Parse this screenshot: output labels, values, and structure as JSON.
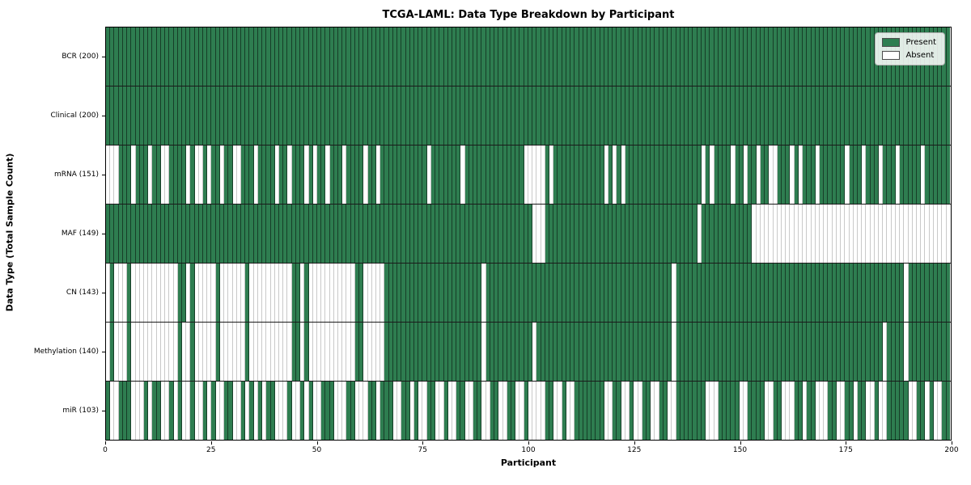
{
  "chart_data": {
    "type": "heatmap",
    "title": "TCGA-LAML: Data Type Breakdown by Participant",
    "xlabel": "Participant",
    "ylabel": "Data Type (Total Sample Count)",
    "x_range": [
      0,
      200
    ],
    "x_ticks": [
      0,
      25,
      50,
      75,
      100,
      125,
      150,
      175,
      200
    ],
    "n_participants": 200,
    "grid": "cell-borders-on",
    "legend_position": "upper right",
    "colors": {
      "present": "#2e7d50",
      "absent": "#ffffff",
      "gridline_on_present": "rgba(0,0,0,0.5)",
      "gridline_on_absent": "#c9c9c9",
      "plot_border": "#000000"
    },
    "legend": {
      "entries": [
        {
          "label": "Present",
          "color": "#2e7d50"
        },
        {
          "label": "Absent",
          "color": "#ffffff"
        }
      ]
    },
    "rows": [
      {
        "label": "BCR (200)",
        "present_total": 200,
        "absent": []
      },
      {
        "label": "Clinical (200)",
        "present_total": 200,
        "absent": []
      },
      {
        "label": "mRNA (151)",
        "present_total": 151,
        "absent": [
          1,
          2,
          3,
          7,
          11,
          14,
          15,
          20,
          22,
          23,
          25,
          28,
          31,
          32,
          36,
          41,
          44,
          48,
          50,
          53,
          57,
          62,
          65,
          77,
          85,
          100,
          101,
          102,
          103,
          104,
          106,
          119,
          121,
          123,
          142,
          144,
          149,
          152,
          155,
          158,
          159,
          163,
          165,
          169,
          176,
          180,
          184,
          188,
          194
        ]
      },
      {
        "label": "MAF (149)",
        "present_total": 149,
        "absent": [
          102,
          103,
          104,
          141,
          154,
          155,
          156,
          157,
          158,
          159,
          160,
          161,
          162,
          163,
          164,
          165,
          166,
          167,
          168,
          169,
          170,
          171,
          172,
          173,
          174,
          175,
          176,
          177,
          178,
          179,
          180,
          181,
          182,
          183,
          184,
          185,
          186,
          187,
          188,
          189,
          190,
          191,
          192,
          193,
          194,
          195,
          196,
          197,
          198,
          199,
          200
        ]
      },
      {
        "label": "CN (143)",
        "present_total": 143,
        "absent": [
          1,
          3,
          4,
          5,
          7,
          8,
          9,
          10,
          11,
          12,
          13,
          14,
          15,
          16,
          17,
          20,
          22,
          23,
          24,
          25,
          26,
          28,
          29,
          30,
          31,
          32,
          33,
          35,
          36,
          37,
          38,
          39,
          40,
          41,
          42,
          43,
          44,
          47,
          49,
          50,
          51,
          52,
          53,
          54,
          55,
          56,
          57,
          58,
          59,
          62,
          63,
          64,
          65,
          66,
          90,
          135,
          190
        ]
      },
      {
        "label": "Methylation (140)",
        "present_total": 140,
        "absent": [
          1,
          3,
          4,
          5,
          7,
          8,
          9,
          10,
          11,
          12,
          13,
          14,
          15,
          16,
          17,
          19,
          20,
          22,
          23,
          24,
          25,
          26,
          28,
          29,
          30,
          31,
          32,
          33,
          35,
          36,
          37,
          38,
          39,
          40,
          41,
          42,
          43,
          44,
          47,
          49,
          50,
          51,
          52,
          53,
          54,
          55,
          56,
          57,
          58,
          59,
          62,
          63,
          64,
          65,
          66,
          90,
          102,
          135,
          185,
          190
        ]
      },
      {
        "label": "miR (103)",
        "present_total": 103,
        "absent": [
          2,
          3,
          7,
          8,
          9,
          11,
          14,
          15,
          17,
          19,
          20,
          22,
          23,
          25,
          27,
          28,
          31,
          32,
          34,
          36,
          38,
          41,
          42,
          43,
          45,
          46,
          48,
          50,
          51,
          55,
          56,
          57,
          60,
          61,
          62,
          65,
          69,
          70,
          73,
          75,
          76,
          79,
          80,
          82,
          83,
          86,
          87,
          90,
          91,
          94,
          95,
          98,
          99,
          101,
          102,
          103,
          104,
          107,
          108,
          110,
          111,
          119,
          120,
          123,
          124,
          126,
          127,
          130,
          131,
          134,
          135,
          143,
          144,
          145,
          151,
          152,
          157,
          158,
          161,
          162,
          163,
          166,
          169,
          170,
          171,
          174,
          175,
          178,
          181,
          182,
          184,
          185,
          191,
          192,
          195,
          197,
          198
        ]
      }
    ]
  }
}
